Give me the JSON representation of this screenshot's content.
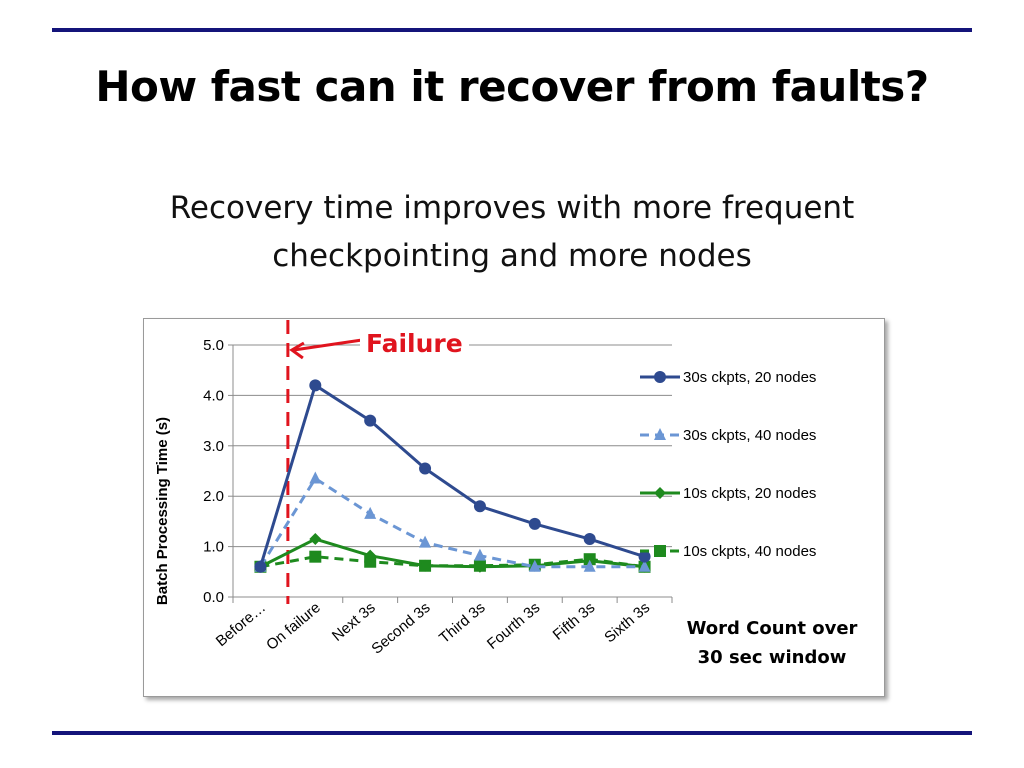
{
  "slide": {
    "title": "How fast can it recover from faults?",
    "subtitle_line1": "Recovery time improves with more frequent",
    "subtitle_line2": "checkpointing and more nodes"
  },
  "annotation": {
    "failure_label": "Failure",
    "color": "#e0141e",
    "failure_position": "between Before… and On failure"
  },
  "chart_data": {
    "type": "line",
    "title": "",
    "xlabel": "Word Count over 30 sec window",
    "ylabel": "Batch Processing Time (s)",
    "ylim": [
      0,
      5
    ],
    "yticks": [
      "0.0",
      "1.0",
      "2.0",
      "3.0",
      "4.0",
      "5.0"
    ],
    "grid": true,
    "legend_position": "right",
    "categories": [
      "Before…",
      "On failure",
      "Next 3s",
      "Second 3s",
      "Third 3s",
      "Fourth 3s",
      "Fifth 3s",
      "Sixth 3s"
    ],
    "series": [
      {
        "name": "30s ckpts, 20 nodes",
        "values": [
          0.6,
          4.2,
          3.5,
          2.55,
          1.8,
          1.45,
          1.15,
          0.8
        ],
        "color": "#2e4a8f",
        "dash": "solid",
        "marker": "circle"
      },
      {
        "name": "30s ckpts, 40 nodes",
        "values": [
          0.6,
          2.35,
          1.65,
          1.08,
          0.82,
          0.6,
          0.6,
          0.6
        ],
        "color": "#6b96d4",
        "dash": "dashed",
        "marker": "triangle"
      },
      {
        "name": "10s ckpts, 20 nodes",
        "values": [
          0.6,
          1.15,
          0.82,
          0.62,
          0.6,
          0.62,
          0.72,
          0.6
        ],
        "color": "#1e8a1e",
        "dash": "solid",
        "marker": "diamond"
      },
      {
        "name": "10s ckpts, 40 nodes",
        "values": [
          0.6,
          0.8,
          0.7,
          0.62,
          0.62,
          0.64,
          0.75,
          0.6
        ],
        "color": "#1e8a1e",
        "dash": "dashed",
        "marker": "square"
      }
    ]
  }
}
